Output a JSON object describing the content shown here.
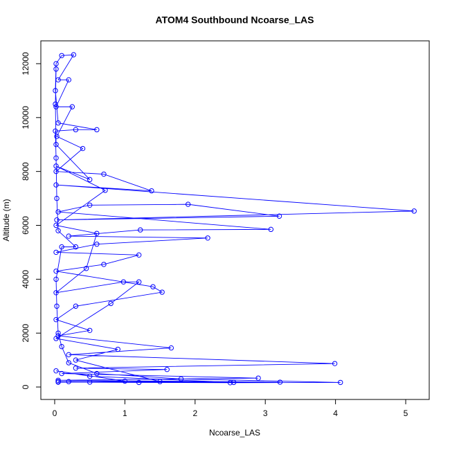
{
  "chart_data": {
    "type": "line",
    "title": "ATOM4 Southbound Ncoarse_LAS",
    "x_label": "Ncoarse_LAS",
    "y_label": "Altitude (m)",
    "color": "#0000ff",
    "xlim": [
      -0.197,
      5.335
    ],
    "ylim": [
      -462,
      12847
    ],
    "xticks": [
      0,
      1,
      2,
      3,
      4,
      5
    ],
    "yticks": [
      0,
      2000,
      4000,
      6000,
      8000,
      10000,
      12000
    ],
    "x": [
      0.05,
      0.5,
      1.2,
      2.5,
      4.07,
      1.8,
      0.6,
      0.2,
      0.1,
      0.05,
      0.03,
      0.02,
      0.1,
      0.3,
      0.05,
      0.03,
      0.02,
      0.01,
      0.3,
      0.6,
      0.05,
      0.01,
      0.02,
      0.1,
      0.27,
      0.05,
      0.2,
      0.02,
      0.25,
      0.03,
      0.4,
      0.02,
      0.7,
      1.38,
      0.02,
      5.12,
      0.03,
      3.2,
      1.9,
      0.5,
      0.05,
      3.08,
      1.22,
      0.2,
      2.18,
      0.6,
      0.02,
      1.2,
      0.7,
      0.02,
      1.4,
      1.53,
      0.3,
      0.02,
      0.5,
      0.05,
      1.66,
      0.2,
      3.99,
      0.3,
      1.6,
      0.1,
      2.9,
      0.05,
      3.21,
      0.2,
      2.55,
      0.5,
      0.02,
      1.0,
      0.05,
      1.5,
      0.3,
      0.9,
      0.02,
      0.8,
      1.2,
      0.98,
      0.02,
      0.45,
      0.6,
      0.02,
      0.72,
      0.02,
      0.5,
      0.02,
      0.01,
      0.02
    ],
    "values": [
      200,
      180,
      170,
      160,
      170,
      300,
      500,
      900,
      1500,
      2000,
      3000,
      4000,
      5200,
      5200,
      5800,
      7000,
      8500,
      9500,
      9550,
      9550,
      9800,
      11000,
      12000,
      12300,
      12330,
      11400,
      11400,
      10400,
      10400,
      9300,
      8850,
      8000,
      7900,
      7280,
      7500,
      6530,
      6200,
      6340,
      6780,
      6750,
      6500,
      5850,
      5830,
      5600,
      5530,
      5300,
      5000,
      4900,
      4550,
      4300,
      3720,
      3520,
      3000,
      2500,
      2100,
      1900,
      1450,
      1200,
      870,
      700,
      650,
      500,
      330,
      250,
      180,
      200,
      170,
      400,
      600,
      220,
      180,
      200,
      1000,
      1400,
      1800,
      3100,
      3900,
      3900,
      3500,
      4400,
      5700,
      6000,
      7300,
      8200,
      7700,
      9000,
      10500,
      11800
    ]
  }
}
